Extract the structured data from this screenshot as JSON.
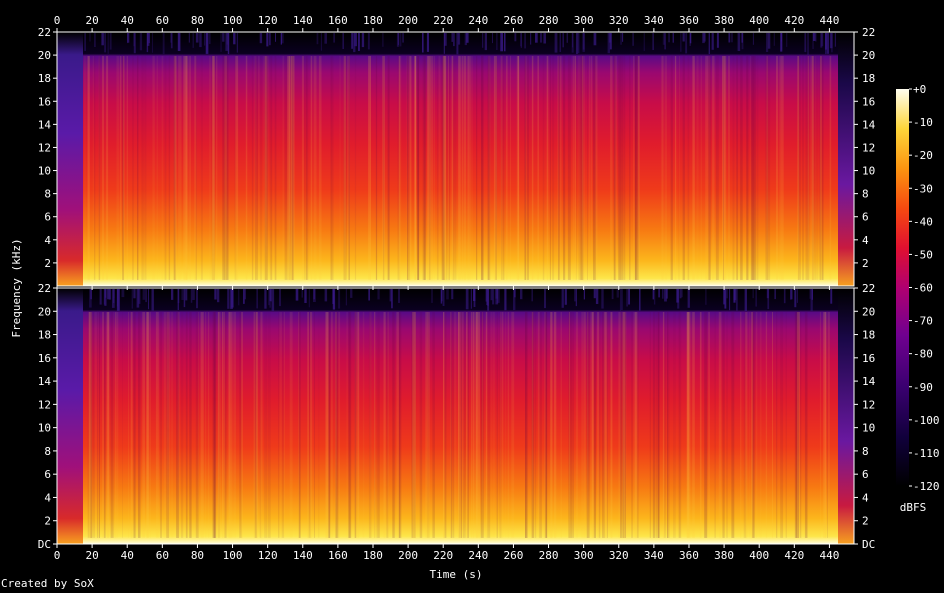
{
  "chart_data": {
    "type": "heatmap",
    "xlabel": "Time (s)",
    "ylabel": "Frequency (kHz)",
    "x_ticks": [
      0,
      20,
      40,
      60,
      80,
      100,
      120,
      140,
      160,
      180,
      200,
      220,
      240,
      260,
      280,
      300,
      320,
      340,
      360,
      380,
      400,
      420,
      440
    ],
    "xlim": [
      0,
      454
    ],
    "channels": [
      {
        "y_ticks": [
          "2",
          "4",
          "6",
          "8",
          "10",
          "12",
          "14",
          "16",
          "18",
          "20",
          "22"
        ]
      },
      {
        "y_ticks": [
          "DC",
          "2",
          "4",
          "6",
          "8",
          "10",
          "12",
          "14",
          "16",
          "18",
          "20",
          "22"
        ]
      }
    ],
    "ylim": [
      0,
      22
    ],
    "colorbar": {
      "label": "dBFS",
      "ticks": [
        "+0",
        "-10",
        "-20",
        "-30",
        "-40",
        "-50",
        "-60",
        "-70",
        "-80",
        "-90",
        "-100",
        "-110",
        "-120"
      ],
      "range": [
        -120,
        0
      ]
    },
    "credit": "Created by SoX",
    "colors": {
      "background": "#000000",
      "palette": [
        "#000000",
        "#1a0040",
        "#3a0078",
        "#6a0090",
        "#a0008a",
        "#d40050",
        "#ee2020",
        "#f86a10",
        "#fcb018",
        "#fde44a",
        "#fffcc8"
      ]
    }
  }
}
